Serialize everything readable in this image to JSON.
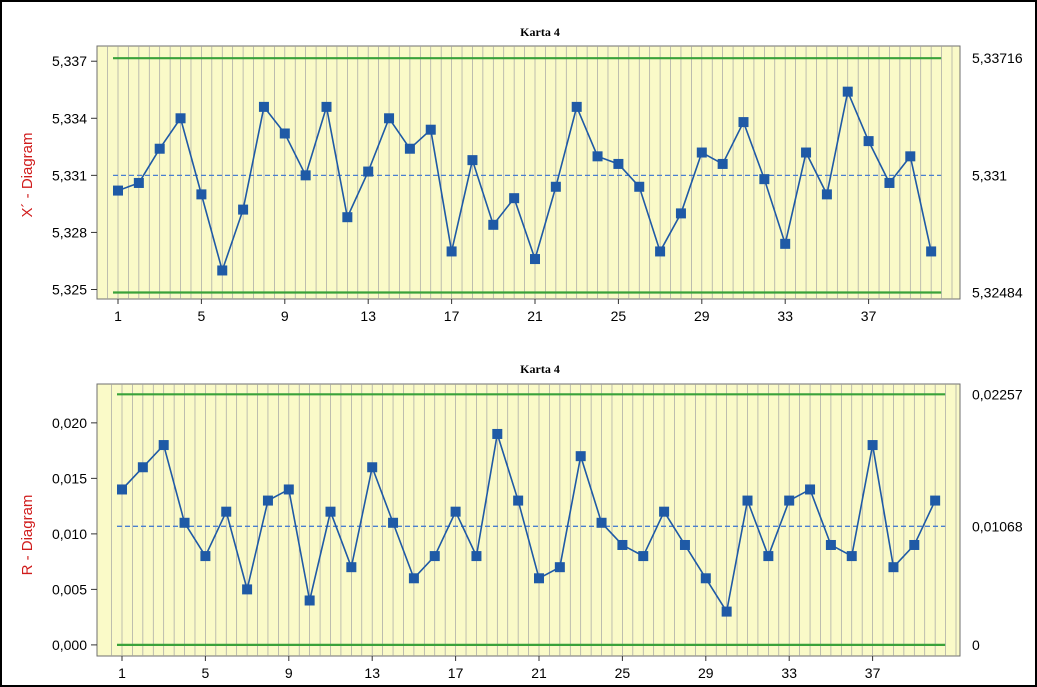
{
  "chart_data": [
    {
      "type": "line",
      "title": "Karta 4",
      "ylabel": "X´ - Diagram",
      "x": [
        1,
        2,
        3,
        4,
        5,
        6,
        7,
        8,
        9,
        10,
        11,
        12,
        13,
        14,
        15,
        16,
        17,
        18,
        19,
        20,
        21,
        22,
        23,
        24,
        25,
        26,
        27,
        28,
        29,
        30,
        31,
        32,
        33,
        34,
        35,
        36,
        37,
        38,
        39,
        40
      ],
      "values": [
        5.3302,
        5.3306,
        5.3324,
        5.334,
        5.33,
        5.326,
        5.3292,
        5.3346,
        5.3332,
        5.331,
        5.3346,
        5.3288,
        5.3312,
        5.334,
        5.3324,
        5.3334,
        5.327,
        5.3318,
        5.3284,
        5.3298,
        5.3266,
        5.3304,
        5.3346,
        5.332,
        5.3316,
        5.3304,
        5.327,
        5.329,
        5.3322,
        5.3316,
        5.3338,
        5.3308,
        5.3274,
        5.3322,
        5.33,
        5.3354,
        5.3328,
        5.3306,
        5.332,
        5.327
      ],
      "xticks": [
        "1",
        "5",
        "9",
        "13",
        "17",
        "21",
        "25",
        "29",
        "33",
        "37"
      ],
      "yticks": [
        "5,325",
        "5,328",
        "5,331",
        "5,334",
        "5,337"
      ],
      "ylim": [
        5.3245,
        5.3378
      ],
      "limits": {
        "ucl": 5.33716,
        "cl": 5.331,
        "lcl": 5.32484
      },
      "limit_labels": [
        "5,33716",
        "5,331",
        "5,32484"
      ],
      "colors": {
        "series": "#1f5aa6",
        "limits": "#3aa23a",
        "center": "#4a7fd0",
        "background": "#fafac8",
        "grid": "#a3a3a3",
        "ylabel": "#d01c1c"
      }
    },
    {
      "type": "line",
      "title": "Karta 4",
      "ylabel": "R - Diagram",
      "x": [
        1,
        2,
        3,
        4,
        5,
        6,
        7,
        8,
        9,
        10,
        11,
        12,
        13,
        14,
        15,
        16,
        17,
        18,
        19,
        20,
        21,
        22,
        23,
        24,
        25,
        26,
        27,
        28,
        29,
        30,
        31,
        32,
        33,
        34,
        35,
        36,
        37,
        38,
        39,
        40
      ],
      "values": [
        0.014,
        0.016,
        0.018,
        0.011,
        0.008,
        0.012,
        0.005,
        0.013,
        0.014,
        0.004,
        0.012,
        0.007,
        0.016,
        0.011,
        0.006,
        0.008,
        0.012,
        0.008,
        0.019,
        0.013,
        0.006,
        0.007,
        0.017,
        0.011,
        0.009,
        0.008,
        0.012,
        0.009,
        0.006,
        0.003,
        0.013,
        0.008,
        0.013,
        0.014,
        0.009,
        0.008,
        0.018,
        0.007,
        0.009,
        0.013
      ],
      "xticks": [
        "1",
        "5",
        "9",
        "13",
        "17",
        "21",
        "25",
        "29",
        "33",
        "37"
      ],
      "yticks": [
        "0,000",
        "0,005",
        "0,010",
        "0,015",
        "0,020"
      ],
      "ylim": [
        -0.001,
        0.0235
      ],
      "limits": {
        "ucl": 0.02257,
        "cl": 0.01068,
        "lcl": 0
      },
      "limit_labels": [
        "0,02257",
        "0,01068",
        "0"
      ],
      "colors": {
        "series": "#1f5aa6",
        "limits": "#3aa23a",
        "center": "#4a7fd0",
        "background": "#fafac8",
        "grid": "#a3a3a3",
        "ylabel": "#d01c1c"
      }
    }
  ]
}
